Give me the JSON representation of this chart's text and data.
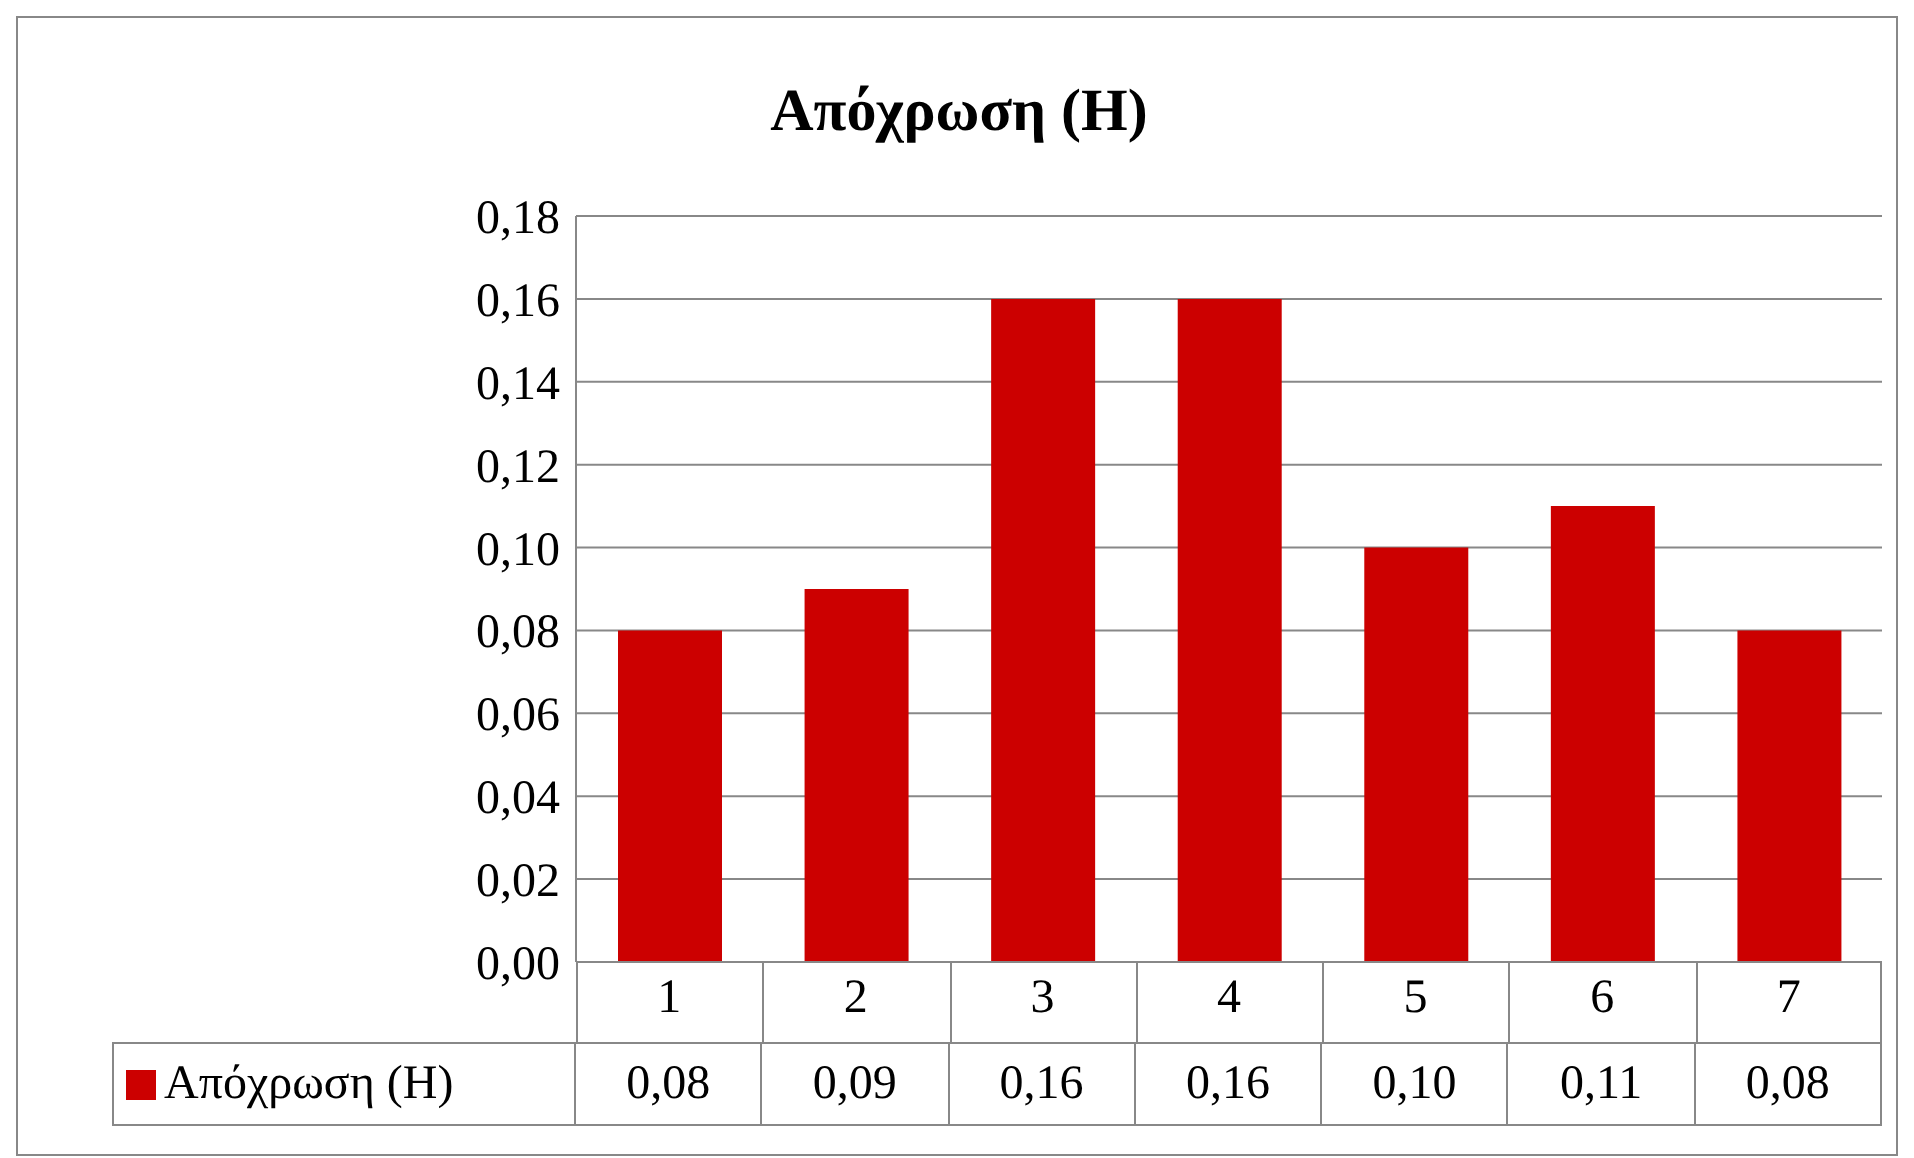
{
  "chart_data": {
    "type": "bar",
    "title": "Απόχρωση (H)",
    "categories": [
      "1",
      "2",
      "3",
      "4",
      "5",
      "6",
      "7"
    ],
    "series": [
      {
        "name": "Απόχρωση (H)",
        "color": "#cc0000",
        "values": [
          0.08,
          0.09,
          0.16,
          0.16,
          0.1,
          0.11,
          0.08
        ],
        "value_labels": [
          "0,08",
          "0,09",
          "0,16",
          "0,16",
          "0,10",
          "0,11",
          "0,08"
        ]
      }
    ],
    "ylim": [
      0,
      0.18
    ],
    "yticks": [
      {
        "value": 0,
        "label": "0,00"
      },
      {
        "value": 0.02,
        "label": "0,02"
      },
      {
        "value": 0.04,
        "label": "0,04"
      },
      {
        "value": 0.06,
        "label": "0,06"
      },
      {
        "value": 0.08,
        "label": "0,08"
      },
      {
        "value": 0.1,
        "label": "0,10"
      },
      {
        "value": 0.12,
        "label": "0,12"
      },
      {
        "value": 0.14,
        "label": "0,14"
      },
      {
        "value": 0.16,
        "label": "0,16"
      },
      {
        "value": 0.18,
        "label": "0,18"
      }
    ],
    "grid": "y",
    "legend": "bottom"
  }
}
